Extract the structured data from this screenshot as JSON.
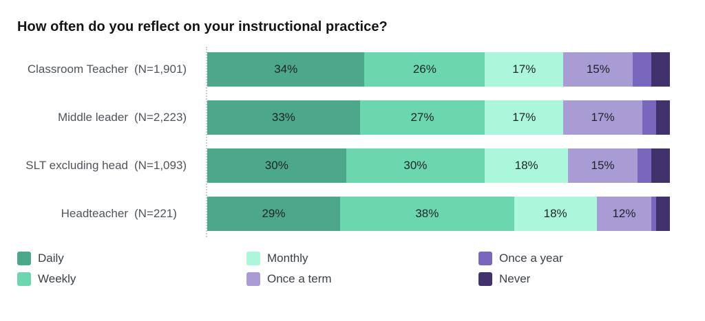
{
  "chart_data": {
    "type": "bar",
    "subtype": "horizontal-stacked-percentage",
    "title": "How often do you reflect on your instructional practice?",
    "value_suffix": "%",
    "xlim": [
      0,
      100
    ],
    "grid": false,
    "legend_position": "bottom",
    "label_display_min_value": 10,
    "series_names": [
      "Daily",
      "Weekly",
      "Monthly",
      "Once a term",
      "Once a year",
      "Never"
    ],
    "series_colors": [
      "#4DA88B",
      "#6CD6AF",
      "#ACF7DC",
      "#A99CD5",
      "#7967BD",
      "#41326B"
    ],
    "rows": [
      {
        "category": "Classroom Teacher",
        "n_label": "(N=1,901)",
        "values": [
          34,
          26,
          17,
          15,
          4,
          4
        ]
      },
      {
        "category": "Middle leader",
        "n_label": "(N=2,223)",
        "values": [
          33,
          27,
          17,
          17,
          3,
          3
        ]
      },
      {
        "category": "SLT excluding head",
        "n_label": "(N=1,093)",
        "values": [
          30,
          30,
          18,
          15,
          3,
          4
        ]
      },
      {
        "category": "Headteacher",
        "n_label": "(N=221)",
        "values": [
          29,
          38,
          18,
          12,
          1,
          3
        ]
      }
    ]
  },
  "legend": {
    "columns": [
      [
        "Daily",
        "Weekly"
      ],
      [
        "Monthly",
        "Once a term"
      ],
      [
        "Once a year",
        "Never"
      ]
    ]
  }
}
